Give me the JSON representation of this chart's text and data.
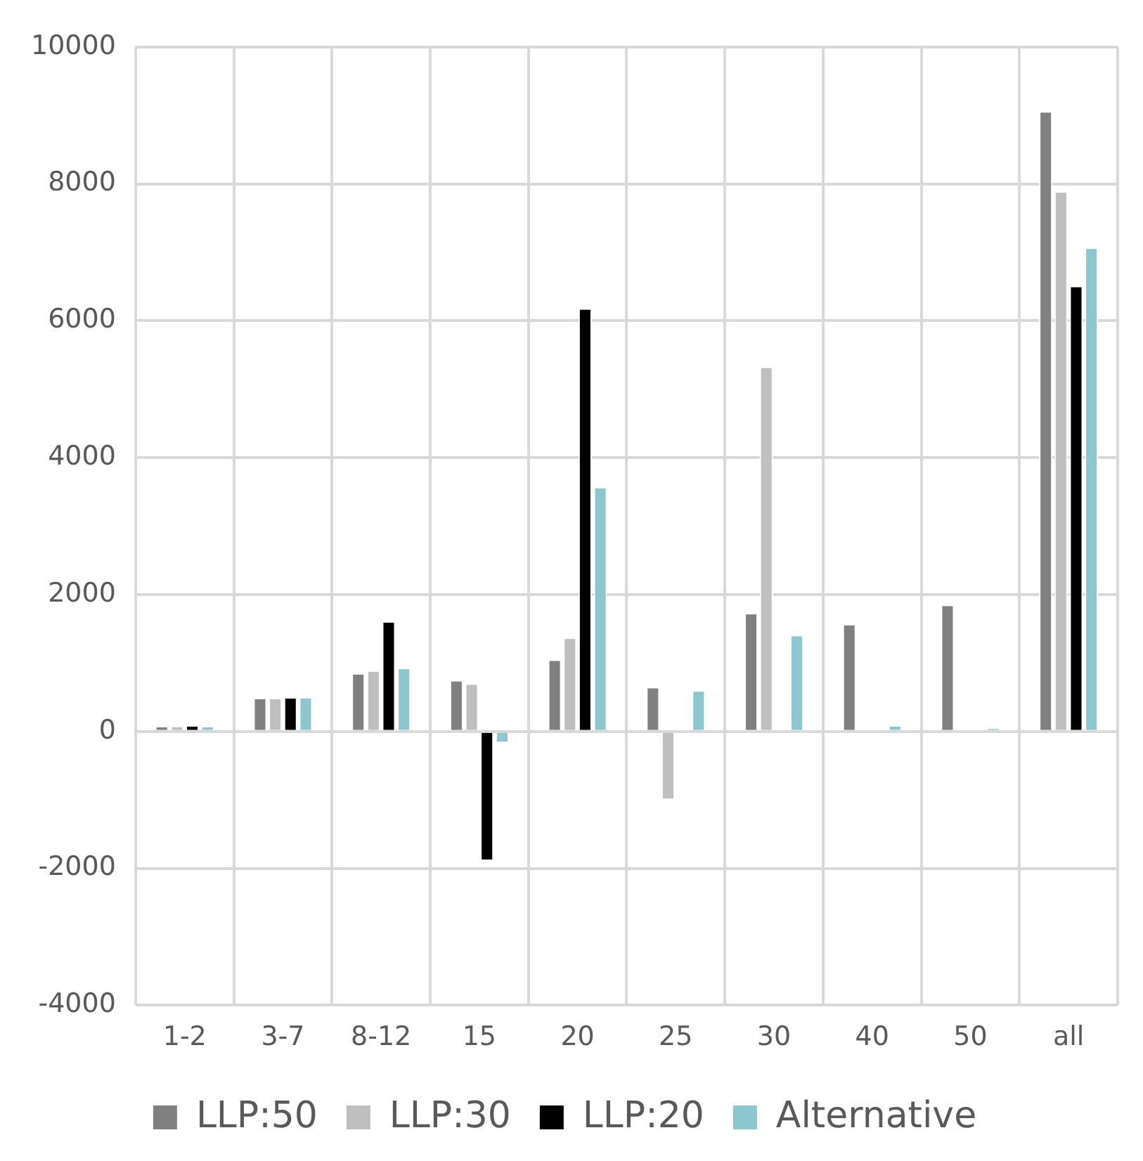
{
  "chart_data": {
    "type": "bar",
    "categories": [
      "1-2",
      "3-7",
      "8-12",
      "15",
      "20",
      "25",
      "30",
      "40",
      "50",
      "all"
    ],
    "series": [
      {
        "name": "LLP:50",
        "color": "#808080",
        "values": [
          80,
          490,
          850,
          750,
          1050,
          650,
          1730,
          1570,
          1850,
          9060
        ]
      },
      {
        "name": "LLP:30",
        "color": "#bfbfbf",
        "values": [
          80,
          490,
          890,
          700,
          1370,
          -1000,
          5330,
          null,
          null,
          7890
        ]
      },
      {
        "name": "LLP:20",
        "color": "#000000",
        "values": [
          90,
          500,
          1610,
          -1890,
          6180,
          null,
          null,
          null,
          null,
          6510
        ]
      },
      {
        "name": "Alternative",
        "color": "#8cc6ce",
        "values": [
          80,
          500,
          930,
          -170,
          3570,
          600,
          1410,
          90,
          50,
          7070
        ]
      }
    ],
    "ylim": [
      -4000,
      10000
    ],
    "yticks": [
      -4000,
      -2000,
      0,
      2000,
      4000,
      6000,
      8000,
      10000
    ],
    "grid": true,
    "legend": "bottom"
  }
}
